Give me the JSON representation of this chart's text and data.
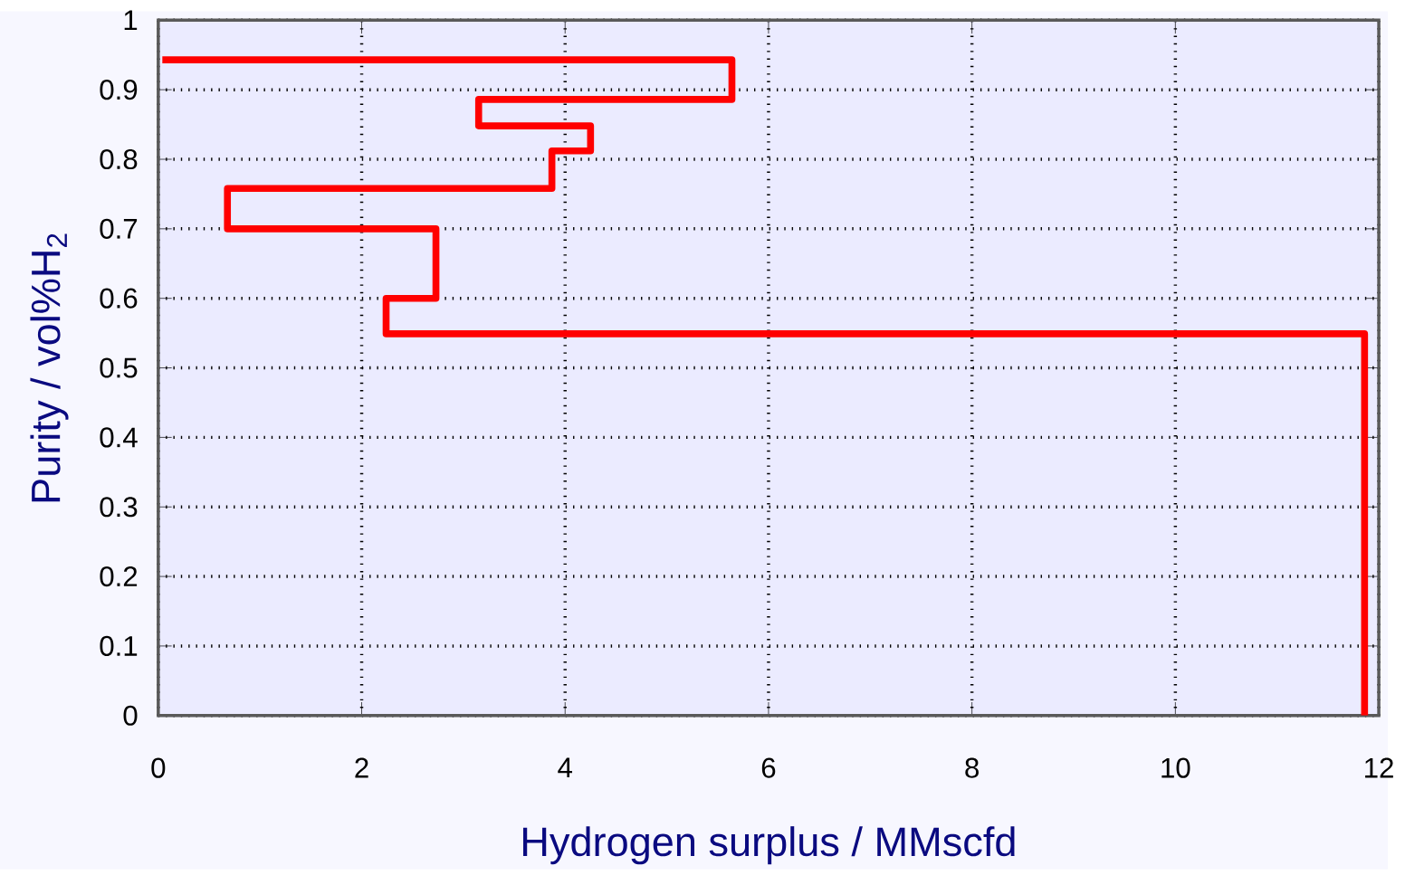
{
  "chart_data": {
    "type": "line",
    "xlabel": "Hydrogen surplus / MMscfd",
    "ylabel": "Purity / vol%H$_{2}$",
    "xlim": [
      0,
      12
    ],
    "ylim": [
      0,
      1
    ],
    "xticks": [
      0,
      2,
      4,
      6,
      8,
      10,
      12
    ],
    "yticks": [
      0,
      0.1,
      0.2,
      0.3,
      0.4,
      0.5,
      0.6,
      0.7,
      0.8,
      0.9,
      1
    ],
    "grid": true,
    "line_style": "solid",
    "series": [
      {
        "color": "#ff0000",
        "x": [
          0.04,
          5.64,
          5.64,
          3.15,
          3.15,
          4.25,
          4.25,
          3.87,
          3.87,
          0.68,
          0.68,
          2.73,
          2.73,
          2.24,
          2.24,
          11.86,
          11.86
        ],
        "values": [
          0.943,
          0.943,
          0.886,
          0.886,
          0.848,
          0.848,
          0.812,
          0.812,
          0.758,
          0.758,
          0.7,
          0.7,
          0.6,
          0.6,
          0.549,
          0.549,
          0
        ]
      }
    ]
  }
}
